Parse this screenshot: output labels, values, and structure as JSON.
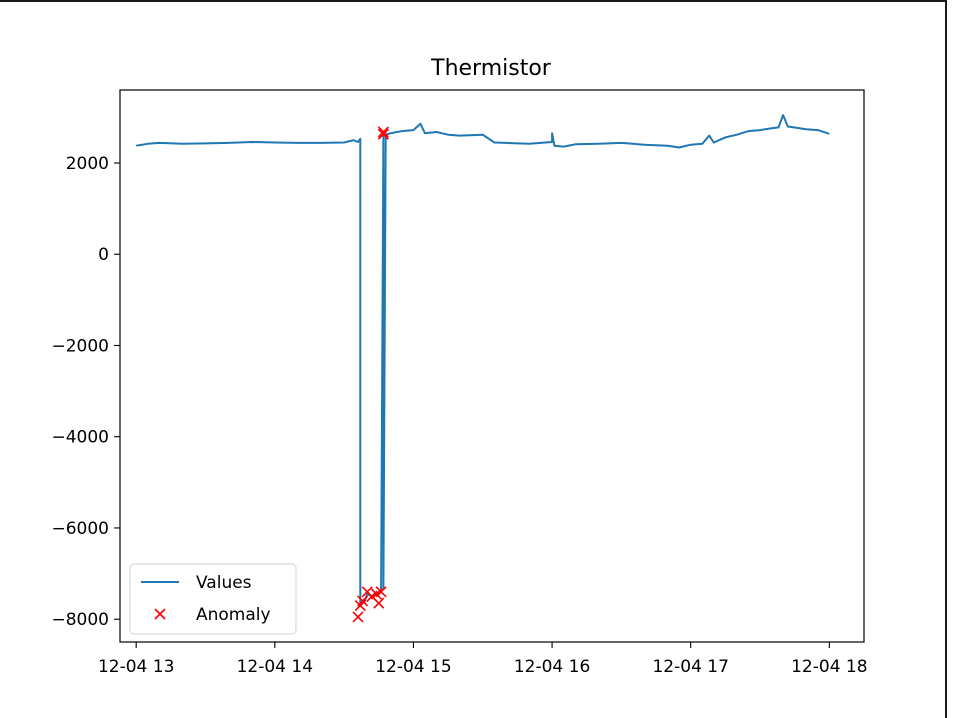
{
  "chart_data": {
    "type": "line",
    "title": "Thermistor",
    "xlabel": "",
    "ylabel": "",
    "x_tick_labels": [
      "12-04 13",
      "12-04 14",
      "12-04 15",
      "12-04 16",
      "12-04 17",
      "12-04 18"
    ],
    "x_ticks": [
      "12-04 13:00",
      "12-04 14:00",
      "12-04 15:00",
      "12-04 16:00",
      "12-04 17:00",
      "12-04 18:00"
    ],
    "y_ticks": [
      2000,
      0,
      -2000,
      -4000,
      -6000,
      -8000
    ],
    "y_tick_labels": [
      "2000",
      "0",
      "−2000",
      "−4000",
      "−6000",
      "−8000"
    ],
    "xlim": [
      "12-04 12:53",
      "12-04 18:15"
    ],
    "ylim": [
      -8500,
      3600
    ],
    "grid": false,
    "legend_position": "lower-left",
    "legend": [
      "Values",
      "Anomaly"
    ],
    "series": [
      {
        "name": "Values",
        "color": "#1f77b4",
        "marker": "line",
        "points": [
          [
            "12-04 13:00",
            2380
          ],
          [
            "12-04 13:05",
            2420
          ],
          [
            "12-04 13:10",
            2440
          ],
          [
            "12-04 13:20",
            2420
          ],
          [
            "12-04 13:30",
            2430
          ],
          [
            "12-04 13:40",
            2440
          ],
          [
            "12-04 13:50",
            2460
          ],
          [
            "12-04 14:00",
            2450
          ],
          [
            "12-04 14:10",
            2440
          ],
          [
            "12-04 14:20",
            2440
          ],
          [
            "12-04 14:30",
            2450
          ],
          [
            "12-04 14:34",
            2500
          ],
          [
            "12-04 14:36",
            2460
          ],
          [
            "12-04 14:37",
            2530
          ],
          [
            "12-04 14:37",
            -7700
          ],
          [
            "12-04 14:39",
            -7600
          ],
          [
            "12-04 14:40",
            -7450
          ],
          [
            "12-04 14:42",
            -7500
          ],
          [
            "12-04 14:44",
            -7400
          ],
          [
            "12-04 14:45",
            -7450
          ],
          [
            "12-04 14:46",
            -7400
          ],
          [
            "12-04 14:47",
            2600
          ],
          [
            "12-04 14:47",
            -7350
          ],
          [
            "12-04 14:48",
            2620
          ],
          [
            "12-04 14:50",
            2650
          ],
          [
            "12-04 14:55",
            2700
          ],
          [
            "12-04 15:00",
            2720
          ],
          [
            "12-04 15:03",
            2860
          ],
          [
            "12-04 15:05",
            2650
          ],
          [
            "12-04 15:10",
            2680
          ],
          [
            "12-04 15:15",
            2620
          ],
          [
            "12-04 15:20",
            2600
          ],
          [
            "12-04 15:30",
            2620
          ],
          [
            "12-04 15:35",
            2450
          ],
          [
            "12-04 15:40",
            2440
          ],
          [
            "12-04 15:50",
            2420
          ],
          [
            "12-04 16:00",
            2460
          ],
          [
            "12-04 16:00",
            2650
          ],
          [
            "12-04 16:01",
            2380
          ],
          [
            "12-04 16:05",
            2360
          ],
          [
            "12-04 16:10",
            2410
          ],
          [
            "12-04 16:20",
            2420
          ],
          [
            "12-04 16:30",
            2440
          ],
          [
            "12-04 16:40",
            2400
          ],
          [
            "12-04 16:50",
            2380
          ],
          [
            "12-04 16:55",
            2340
          ],
          [
            "12-04 17:00",
            2400
          ],
          [
            "12-04 17:05",
            2420
          ],
          [
            "12-04 17:08",
            2600
          ],
          [
            "12-04 17:10",
            2450
          ],
          [
            "12-04 17:15",
            2560
          ],
          [
            "12-04 17:20",
            2620
          ],
          [
            "12-04 17:25",
            2700
          ],
          [
            "12-04 17:30",
            2720
          ],
          [
            "12-04 17:35",
            2760
          ],
          [
            "12-04 17:38",
            2780
          ],
          [
            "12-04 17:40",
            3050
          ],
          [
            "12-04 17:42",
            2800
          ],
          [
            "12-04 17:50",
            2740
          ],
          [
            "12-04 17:55",
            2720
          ],
          [
            "12-04 18:00",
            2640
          ]
        ]
      },
      {
        "name": "Anomaly",
        "color": "#ff0000",
        "marker": "x",
        "points": [
          [
            "12-04 14:36",
            -7950
          ],
          [
            "12-04 14:37",
            -7700
          ],
          [
            "12-04 14:38",
            -7600
          ],
          [
            "12-04 14:40",
            -7400
          ],
          [
            "12-04 14:42",
            -7500
          ],
          [
            "12-04 14:44",
            -7450
          ],
          [
            "12-04 14:45",
            -7650
          ],
          [
            "12-04 14:46",
            -7400
          ],
          [
            "12-04 14:47",
            2630
          ],
          [
            "12-04 14:47",
            2680
          ]
        ]
      }
    ]
  }
}
